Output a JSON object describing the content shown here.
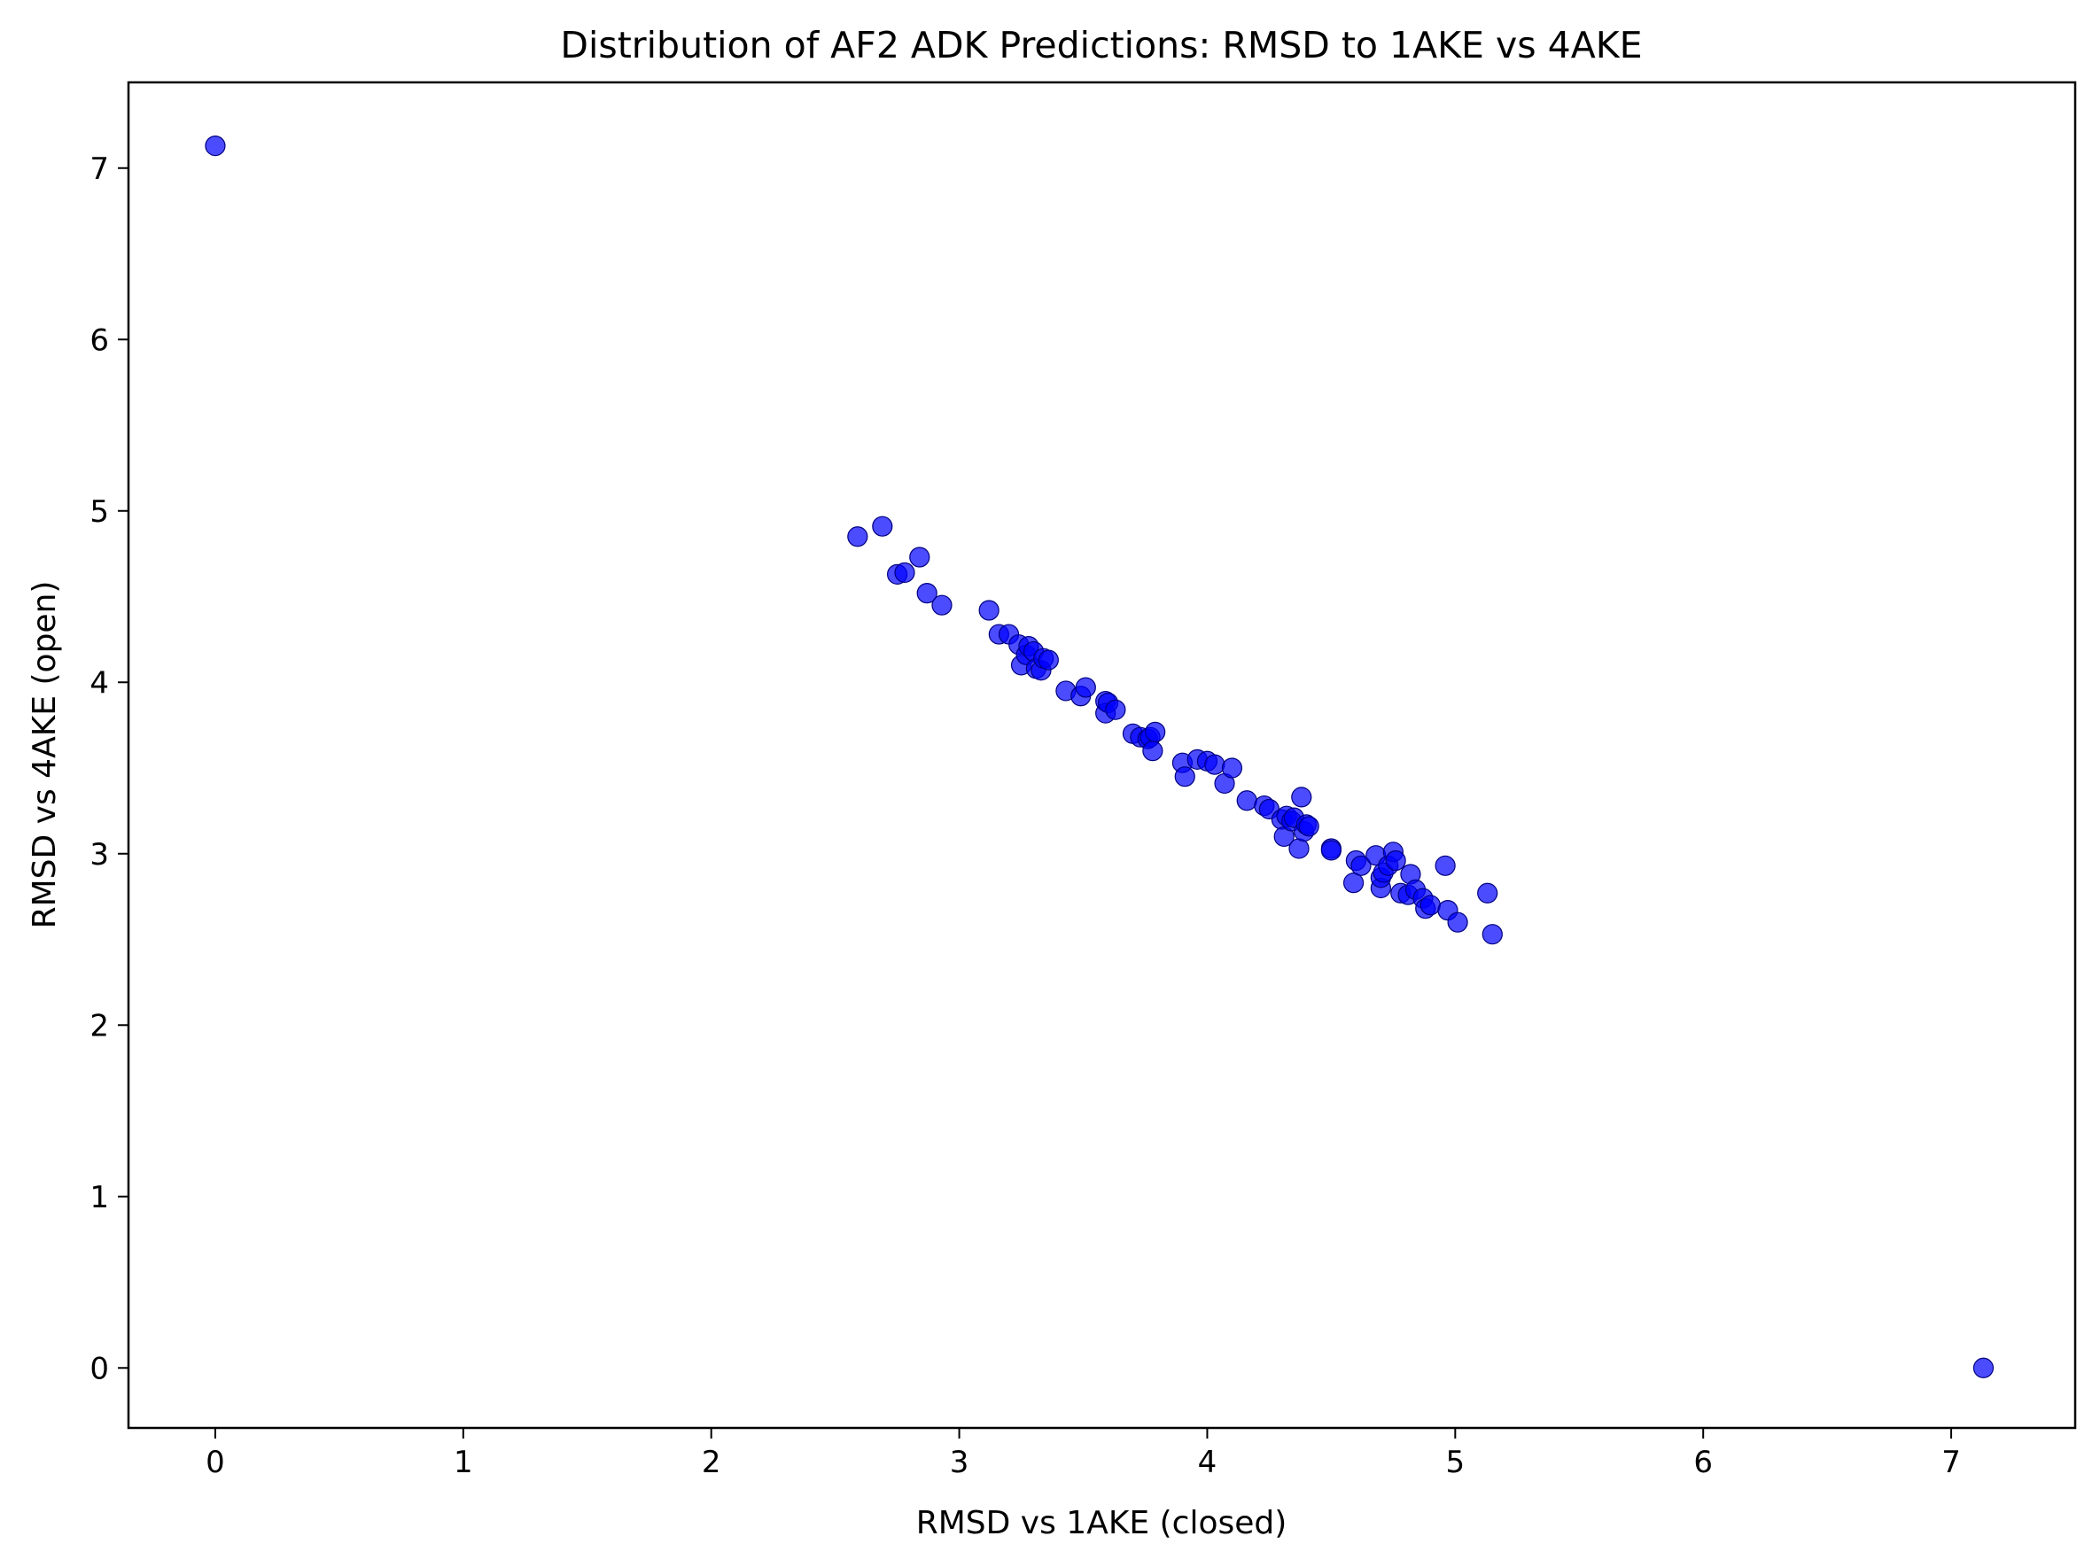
{
  "chart_data": {
    "type": "scatter",
    "title": "Distribution of AF2 ADK Predictions: RMSD to 1AKE vs 4AKE",
    "xlabel": "RMSD vs 1AKE (closed)",
    "ylabel": "RMSD vs 4AKE (open)",
    "xlim": [
      -0.35,
      7.5
    ],
    "ylim": [
      -0.35,
      7.5
    ],
    "xticks": [
      "0",
      "1",
      "2",
      "3",
      "4",
      "5",
      "6",
      "7"
    ],
    "yticks": [
      "0",
      "1",
      "2",
      "3",
      "4",
      "5",
      "6",
      "7"
    ],
    "grid": false,
    "legend": "none",
    "colors": {
      "marker_fill": "#0000ff",
      "marker_edge": "#000080"
    },
    "points": [
      [
        0.0,
        7.13
      ],
      [
        7.13,
        0.0
      ],
      [
        2.59,
        4.85
      ],
      [
        2.69,
        4.91
      ],
      [
        2.75,
        4.63
      ],
      [
        2.78,
        4.64
      ],
      [
        2.84,
        4.73
      ],
      [
        2.87,
        4.52
      ],
      [
        2.93,
        4.45
      ],
      [
        3.12,
        4.42
      ],
      [
        3.16,
        4.28
      ],
      [
        3.2,
        4.28
      ],
      [
        3.24,
        4.22
      ],
      [
        3.25,
        4.1
      ],
      [
        3.27,
        4.16
      ],
      [
        3.28,
        4.21
      ],
      [
        3.3,
        4.18
      ],
      [
        3.31,
        4.08
      ],
      [
        3.33,
        4.07
      ],
      [
        3.34,
        4.14
      ],
      [
        3.36,
        4.13
      ],
      [
        3.43,
        3.95
      ],
      [
        3.49,
        3.92
      ],
      [
        3.51,
        3.97
      ],
      [
        3.59,
        3.89
      ],
      [
        3.59,
        3.82
      ],
      [
        3.6,
        3.88
      ],
      [
        3.63,
        3.84
      ],
      [
        3.7,
        3.7
      ],
      [
        3.73,
        3.68
      ],
      [
        3.76,
        3.67
      ],
      [
        3.77,
        3.68
      ],
      [
        3.78,
        3.6
      ],
      [
        3.79,
        3.71
      ],
      [
        3.9,
        3.53
      ],
      [
        3.91,
        3.45
      ],
      [
        3.96,
        3.55
      ],
      [
        4.0,
        3.54
      ],
      [
        4.03,
        3.52
      ],
      [
        4.07,
        3.41
      ],
      [
        4.1,
        3.5
      ],
      [
        4.16,
        3.31
      ],
      [
        4.23,
        3.28
      ],
      [
        4.25,
        3.26
      ],
      [
        4.3,
        3.2
      ],
      [
        4.31,
        3.1
      ],
      [
        4.32,
        3.22
      ],
      [
        4.34,
        3.19
      ],
      [
        4.35,
        3.21
      ],
      [
        4.37,
        3.03
      ],
      [
        4.38,
        3.33
      ],
      [
        4.39,
        3.13
      ],
      [
        4.4,
        3.17
      ],
      [
        4.41,
        3.16
      ],
      [
        4.5,
        3.03
      ],
      [
        4.5,
        3.02
      ],
      [
        4.59,
        2.83
      ],
      [
        4.6,
        2.96
      ],
      [
        4.62,
        2.93
      ],
      [
        4.68,
        2.99
      ],
      [
        4.7,
        2.8
      ],
      [
        4.7,
        2.86
      ],
      [
        4.71,
        2.89
      ],
      [
        4.73,
        2.93
      ],
      [
        4.75,
        3.01
      ],
      [
        4.76,
        2.96
      ],
      [
        4.78,
        2.77
      ],
      [
        4.81,
        2.76
      ],
      [
        4.82,
        2.88
      ],
      [
        4.84,
        2.79
      ],
      [
        4.87,
        2.74
      ],
      [
        4.88,
        2.68
      ],
      [
        4.9,
        2.7
      ],
      [
        4.96,
        2.93
      ],
      [
        4.97,
        2.67
      ],
      [
        5.01,
        2.6
      ],
      [
        5.13,
        2.77
      ],
      [
        5.15,
        2.53
      ]
    ]
  }
}
